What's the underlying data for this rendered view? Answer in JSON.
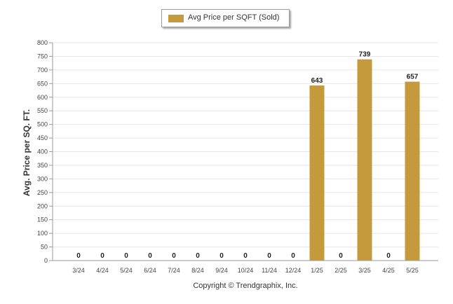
{
  "legend": {
    "label": "Avg Price per SQFT (Sold)",
    "color": "#c49a3c"
  },
  "copyright": "Copyright © Trendgraphix, Inc.",
  "chart_data": {
    "type": "bar",
    "categories": [
      "3/24",
      "4/24",
      "5/24",
      "6/24",
      "7/24",
      "8/24",
      "9/24",
      "10/24",
      "11/24",
      "12/24",
      "1/25",
      "2/25",
      "3/25",
      "4/25",
      "5/25"
    ],
    "series": [
      {
        "name": "Avg Price per SQFT (Sold)",
        "values": [
          0,
          0,
          0,
          0,
          0,
          0,
          0,
          0,
          0,
          0,
          643,
          0,
          739,
          0,
          657
        ]
      }
    ],
    "data_labels": [
      "0",
      "0",
      "0",
      "0",
      "0",
      "0",
      "0",
      "0",
      "0",
      "0",
      "643",
      "0",
      "739",
      "0",
      "657"
    ],
    "ylabel": "Avg. Price per SQ. FT.",
    "xlabel": "",
    "ylim": [
      0,
      800
    ],
    "yticks": [
      0,
      50,
      100,
      150,
      200,
      250,
      300,
      350,
      400,
      450,
      500,
      550,
      600,
      650,
      700,
      750,
      800
    ],
    "grid": true,
    "legend_position": "top-center",
    "bar_color": "#c49a3c"
  }
}
